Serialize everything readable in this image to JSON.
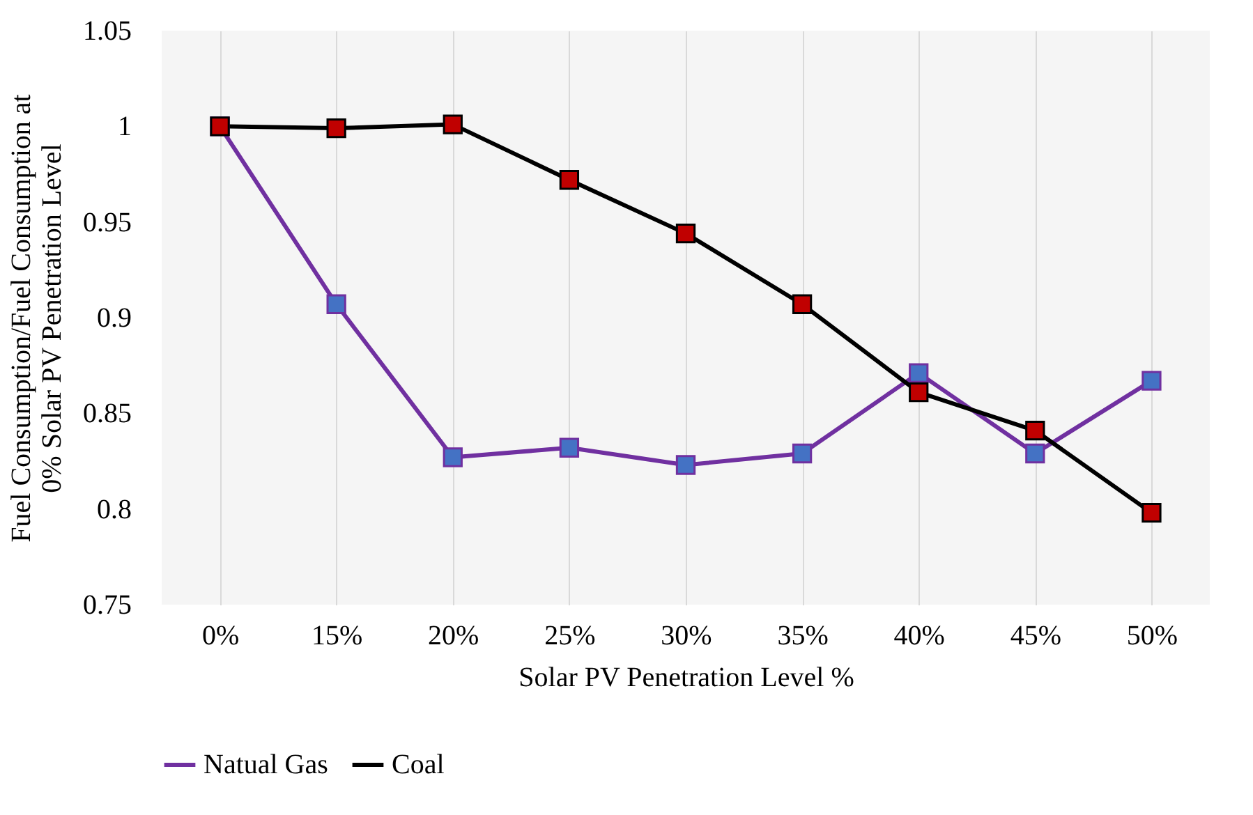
{
  "chart_data": {
    "type": "line",
    "xlabel": "Solar PV Penetration Level %",
    "ylabel": "Fuel Consumption/Fuel Consumption at 0% Solar PV Penetration Level",
    "categories": [
      "0%",
      "15%",
      "20%",
      "25%",
      "30%",
      "35%",
      "40%",
      "45%",
      "50%"
    ],
    "series": [
      {
        "name": "Natual Gas",
        "color": "#7030a0",
        "colors": [
          "#4472c4",
          "#4472c4",
          "#4472c4",
          "#4472c4",
          "#4472c4",
          "#4472c4",
          "#4472c4",
          "#4472c4",
          "#4472c4"
        ],
        "values": [
          1.0,
          0.907,
          0.827,
          0.832,
          0.823,
          0.829,
          0.871,
          0.829,
          0.867
        ]
      },
      {
        "name": "Coal",
        "color": "#000000",
        "colors": [
          "#c00000",
          "#c00000",
          "#c00000",
          "#c00000",
          "#c00000",
          "#c00000",
          "#c00000",
          "#c00000",
          "#c00000"
        ],
        "values": [
          1.0,
          0.999,
          1.001,
          0.972,
          0.944,
          0.907,
          0.861,
          0.841,
          0.798
        ]
      }
    ],
    "ylim": [
      0.75,
      1.05
    ],
    "yticks": [
      0.75,
      0.8,
      0.85,
      0.9,
      0.95,
      1,
      1.05
    ],
    "grid": "x",
    "legend": "bottom",
    "marker": "square",
    "line_style": "solid"
  }
}
